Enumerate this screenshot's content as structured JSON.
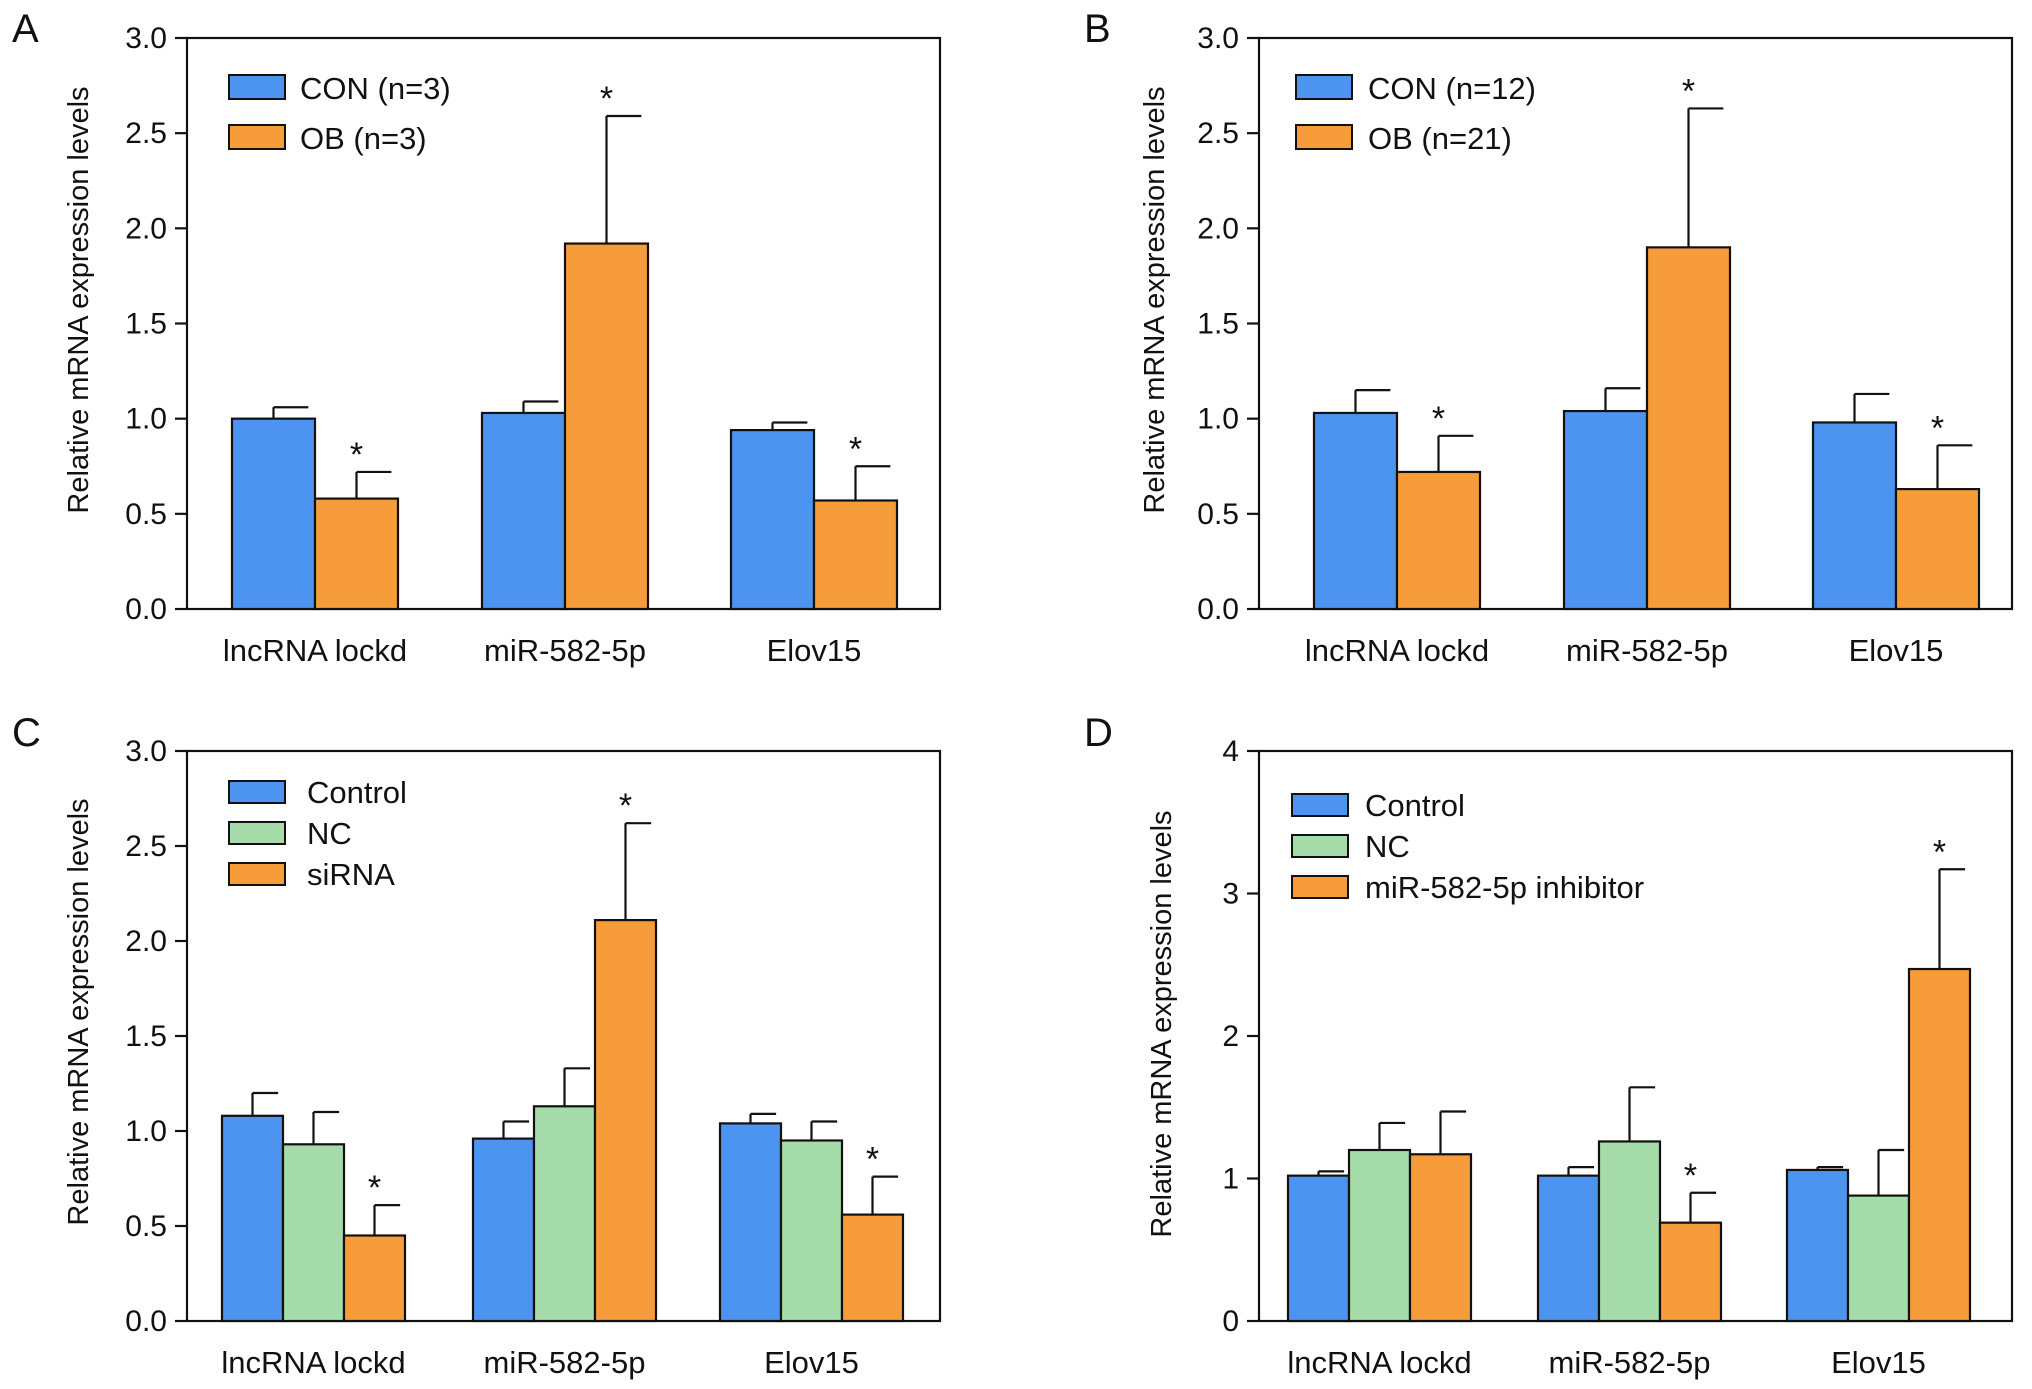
{
  "figure": {
    "colors": {
      "con": "#4d94f0",
      "nc": "#a6dcaa",
      "treat": "#f79c3a",
      "axis": "#111111"
    }
  },
  "chart_data": [
    {
      "panel": "A",
      "type": "bar",
      "ylabel": "Relative mRNA expression levels",
      "ylim": [
        0,
        3.0
      ],
      "yticks": [
        "0.0",
        "0.5",
        "1.0",
        "1.5",
        "2.0",
        "2.5",
        "3.0"
      ],
      "ytick_values": [
        0,
        0.5,
        1.0,
        1.5,
        2.0,
        2.5,
        3.0
      ],
      "categories": [
        "lncRNA lockd",
        "miR-582-5p",
        "Elov15"
      ],
      "series": [
        {
          "name": "CON (n=3)",
          "color": "#4d94f0",
          "values": [
            1.0,
            1.03,
            0.94
          ],
          "errors": [
            0.06,
            0.06,
            0.04
          ],
          "sig": [
            "",
            "",
            ""
          ]
        },
        {
          "name": "OB (n=3)",
          "color": "#f79c3a",
          "values": [
            0.58,
            1.92,
            0.57
          ],
          "errors": [
            0.14,
            0.67,
            0.18
          ],
          "sig": [
            "*",
            "*",
            "*"
          ]
        }
      ],
      "legend": "top-left"
    },
    {
      "panel": "B",
      "type": "bar",
      "ylabel": "Relative mRNA expression levels",
      "ylim": [
        0,
        3.0
      ],
      "yticks": [
        "0.0",
        "0.5",
        "1.0",
        "1.5",
        "2.0",
        "2.5",
        "3.0"
      ],
      "ytick_values": [
        0,
        0.5,
        1.0,
        1.5,
        2.0,
        2.5,
        3.0
      ],
      "categories": [
        "lncRNA lockd",
        "miR-582-5p",
        "Elov15"
      ],
      "series": [
        {
          "name": "CON (n=12)",
          "color": "#4d94f0",
          "values": [
            1.03,
            1.04,
            0.98
          ],
          "errors": [
            0.12,
            0.12,
            0.15
          ],
          "sig": [
            "",
            "",
            ""
          ]
        },
        {
          "name": "OB (n=21)",
          "color": "#f79c3a",
          "values": [
            0.72,
            1.9,
            0.63
          ],
          "errors": [
            0.19,
            0.73,
            0.23
          ],
          "sig": [
            "*",
            "*",
            "*"
          ]
        }
      ],
      "legend": "top-left"
    },
    {
      "panel": "C",
      "type": "bar",
      "ylabel": "Relative mRNA expression levels",
      "ylim": [
        0,
        3.0
      ],
      "yticks": [
        "0.0",
        "0.5",
        "1.0",
        "1.5",
        "2.0",
        "2.5",
        "3.0"
      ],
      "ytick_values": [
        0,
        0.5,
        1.0,
        1.5,
        2.0,
        2.5,
        3.0
      ],
      "categories": [
        "lncRNA lockd",
        "miR-582-5p",
        "Elov15"
      ],
      "series": [
        {
          "name": "Control",
          "color": "#4d94f0",
          "values": [
            1.08,
            0.96,
            1.04
          ],
          "errors": [
            0.12,
            0.09,
            0.05
          ],
          "sig": [
            "",
            "",
            ""
          ]
        },
        {
          "name": "NC",
          "color": "#a6dcaa",
          "values": [
            0.93,
            1.13,
            0.95
          ],
          "errors": [
            0.17,
            0.2,
            0.1
          ],
          "sig": [
            "",
            "",
            ""
          ]
        },
        {
          "name": "siRNA",
          "color": "#f79c3a",
          "values": [
            0.45,
            2.11,
            0.56
          ],
          "errors": [
            0.16,
            0.51,
            0.2
          ],
          "sig": [
            "*",
            "*",
            "*"
          ]
        }
      ],
      "legend": "top-left"
    },
    {
      "panel": "D",
      "type": "bar",
      "ylabel": "Relative mRNA expression levels",
      "ylim": [
        0,
        4
      ],
      "yticks": [
        "0",
        "1",
        "2",
        "3",
        "4"
      ],
      "ytick_values": [
        0,
        1,
        2,
        3,
        4
      ],
      "categories": [
        "lncRNA lockd",
        "miR-582-5p",
        "Elov15"
      ],
      "series": [
        {
          "name": "Control",
          "color": "#4d94f0",
          "values": [
            1.02,
            1.02,
            1.06
          ],
          "errors": [
            0.03,
            0.06,
            0.02
          ],
          "sig": [
            "",
            "",
            ""
          ]
        },
        {
          "name": "NC",
          "color": "#a6dcaa",
          "values": [
            1.2,
            1.26,
            0.88
          ],
          "errors": [
            0.19,
            0.38,
            0.32
          ],
          "sig": [
            "",
            "",
            ""
          ]
        },
        {
          "name": "miR-582-5p inhibitor",
          "color": "#f79c3a",
          "values": [
            1.17,
            0.69,
            2.47
          ],
          "errors": [
            0.3,
            0.21,
            0.7
          ],
          "sig": [
            "",
            "*",
            "*"
          ]
        }
      ],
      "legend": "top-left"
    }
  ]
}
